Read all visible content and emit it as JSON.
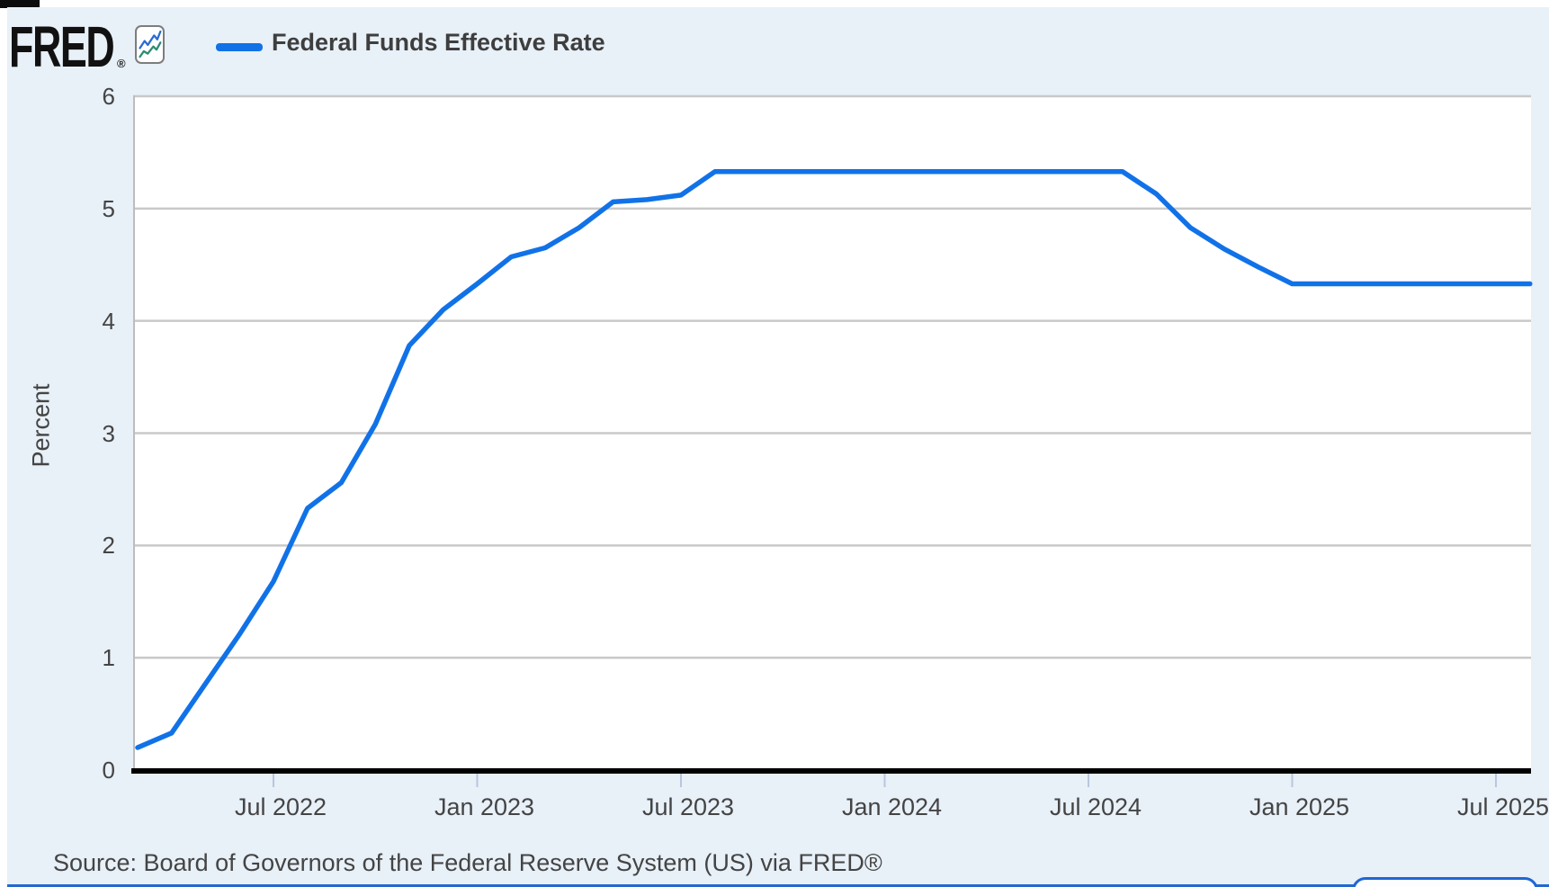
{
  "header": {
    "logo_text": "FRED",
    "registered_mark": "®",
    "legend": {
      "label": "Federal Funds Effective Rate",
      "swatch_color": "#1172e8"
    }
  },
  "chart_data": {
    "type": "line",
    "title": "Federal Funds Effective Rate",
    "ylabel": "Percent",
    "xlabel": "",
    "ylim": [
      0,
      6
    ],
    "yticks": [
      0,
      1,
      2,
      3,
      4,
      5,
      6
    ],
    "grid": true,
    "legend_position": "top-left",
    "line_color": "#1172e8",
    "xtick_labels": [
      "Jul 2022",
      "Jan 2023",
      "Jul 2023",
      "Jan 2024",
      "Jul 2024",
      "Jan 2025",
      "Jul 2025"
    ],
    "x": [
      "Mar 2022",
      "Apr 2022",
      "May 2022",
      "Jun 2022",
      "Jul 2022",
      "Aug 2022",
      "Sep 2022",
      "Oct 2022",
      "Nov 2022",
      "Dec 2022",
      "Jan 2023",
      "Feb 2023",
      "Mar 2023",
      "Apr 2023",
      "May 2023",
      "Jun 2023",
      "Jul 2023",
      "Aug 2023",
      "Sep 2023",
      "Oct 2023",
      "Nov 2023",
      "Dec 2023",
      "Jan 2024",
      "Feb 2024",
      "Mar 2024",
      "Apr 2024",
      "May 2024",
      "Jun 2024",
      "Jul 2024",
      "Aug 2024",
      "Sep 2024",
      "Oct 2024",
      "Nov 2024",
      "Dec 2024",
      "Jan 2025",
      "Feb 2025",
      "Mar 2025",
      "Apr 2025",
      "May 2025",
      "Jun 2025",
      "Jul 2025",
      "Aug 2025"
    ],
    "series": [
      {
        "name": "Federal Funds Effective Rate",
        "values": [
          0.2,
          0.33,
          0.77,
          1.21,
          1.68,
          2.33,
          2.56,
          3.08,
          3.78,
          4.1,
          4.33,
          4.57,
          4.65,
          4.83,
          5.06,
          5.08,
          5.12,
          5.33,
          5.33,
          5.33,
          5.33,
          5.33,
          5.33,
          5.33,
          5.33,
          5.33,
          5.33,
          5.33,
          5.33,
          5.33,
          5.13,
          4.83,
          4.64,
          4.48,
          4.33,
          4.33,
          4.33,
          4.33,
          4.33,
          4.33,
          4.33,
          4.33
        ]
      }
    ]
  },
  "source": {
    "text": "Source: Board of Governors of the Federal Reserve System (US) via FRED®"
  },
  "colors": {
    "panel_background": "#e8f0f8",
    "plot_background": "#ffffff",
    "gridline": "#c9c9c9",
    "axis": "#000000",
    "tick_mark": "#b9c6de",
    "text": "#444444",
    "accent_blue": "#1172e8",
    "panel_border": "#2368cf",
    "icon_line_blue": "#2a6bcf",
    "icon_line_teal": "#2d8c72"
  }
}
